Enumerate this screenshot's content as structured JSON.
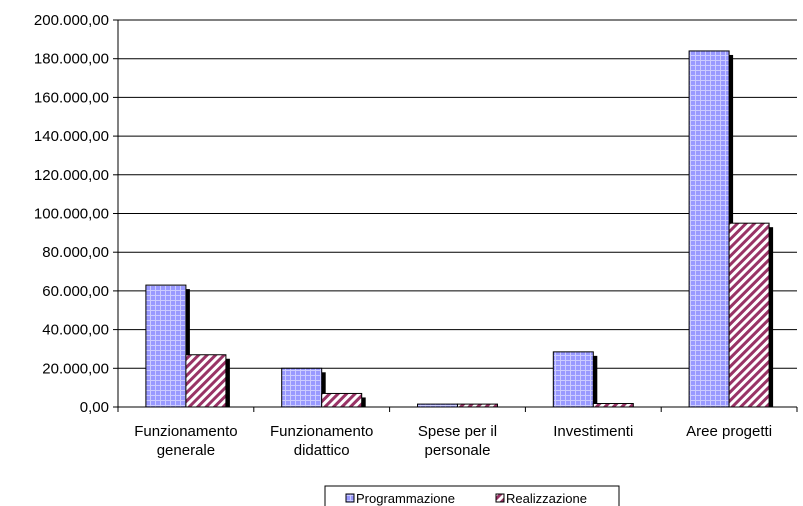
{
  "chart_data": {
    "type": "bar",
    "categories": [
      [
        "Funzionamento",
        "generale"
      ],
      [
        "Funzionamento",
        "didattico"
      ],
      [
        "Spese per il",
        "personale"
      ],
      [
        "Investimenti"
      ],
      [
        "Aree progetti"
      ]
    ],
    "series": [
      {
        "name": "Programmazione",
        "color": "#9999ff",
        "values": [
          63000,
          20000,
          1500,
          28500,
          184000
        ]
      },
      {
        "name": "Realizzazione",
        "color": "#993366",
        "values": [
          27000,
          7000,
          1500,
          1800,
          95000
        ]
      }
    ],
    "y_ticks": [
      "0,00",
      "20.000,00",
      "40.000,00",
      "60.000,00",
      "80.000,00",
      "100.000,00",
      "120.000,00",
      "140.000,00",
      "160.000,00",
      "180.000,00",
      "200.000,00"
    ],
    "ylim": [
      0,
      200000
    ],
    "grid": true,
    "legend_position": "bottom"
  }
}
